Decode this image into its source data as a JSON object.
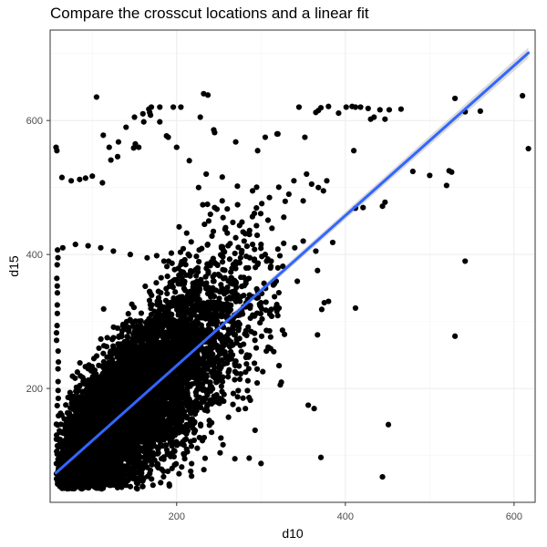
{
  "chart_data": {
    "type": "scatter",
    "title": "Compare the crosscut locations and a linear fit",
    "xlabel": "d10",
    "ylabel": "d15",
    "xlim": [
      50,
      625
    ],
    "ylim": [
      30,
      735
    ],
    "x_ticks": [
      200,
      400,
      600
    ],
    "y_ticks": [
      200,
      400,
      600
    ],
    "grid": true,
    "legend": "none",
    "colors": {
      "points": "#000000",
      "fit_line": "#3366ff",
      "confidence_band": "#c8c8c8",
      "grid": "#ebebeb",
      "border": "#333333"
    },
    "series": [
      {
        "kind": "points",
        "x": [
          57,
          105,
          64,
          58,
          75,
          85,
          92,
          100,
          112,
          120,
          130,
          140,
          150,
          160,
          170,
          180,
          190,
          200,
          215,
          235,
          65,
          80,
          95,
          110,
          125,
          145,
          165,
          185,
          205,
          225,
          245,
          265,
          180,
          196,
          205,
          232,
          237,
          228,
          244,
          245,
          169,
          167,
          161,
          168,
          188,
          113,
          122,
          131,
          149,
          151,
          155,
          270,
          296,
          305,
          319,
          352,
          320,
          272,
          290,
          240,
          238,
          339,
          360,
          374,
          368,
          378,
          354,
          333,
          310,
          385,
          340,
          350,
          365,
          305,
          290,
          312,
          296,
          301,
          285,
          367,
          410,
          412,
          350,
          343,
          320,
          345,
          365,
          368,
          371,
          380,
          392,
          401,
          408,
          412,
          418,
          427,
          430,
          434,
          441,
          447,
          452,
          466,
          480,
          500,
          520,
          530,
          542,
          560,
          610,
          617,
          523,
          526,
          447,
          444,
          530,
          542,
          412,
          421,
          233,
          258,
          260,
          270,
          280,
          300,
          320,
          226,
          254,
          245,
          260,
          255,
          269,
          295,
          318,
          316,
          275,
          287,
          300,
          312,
          246,
          451,
          444,
          371,
          356,
          363,
          286,
          269,
          300,
          367,
          375,
          380,
          372
        ],
        "y": [
          560,
          635,
          515,
          555,
          510,
          512,
          514,
          517,
          507,
          560,
          546,
          590,
          605,
          610,
          620,
          598,
          575,
          560,
          540,
          520,
          410,
          415,
          413,
          410,
          405,
          400,
          395,
          390,
          385,
          380,
          370,
          365,
          620,
          620,
          620,
          640,
          638,
          605,
          586,
          582,
          608,
          617,
          598,
          612,
          577,
          578,
          541,
          568,
          559,
          565,
          560,
          568,
          555,
          575,
          580,
          575,
          580,
          502,
          495,
          460,
          450,
          510,
          505,
          495,
          500,
          510,
          520,
          490,
          485,
          418,
          410,
          420,
          405,
          400,
          415,
          390,
          385,
          397,
          380,
          376,
          555,
          469,
          480,
          360,
          380,
          620,
          612,
          615,
          619,
          621,
          611,
          620,
          621,
          620,
          620,
          618,
          602,
          605,
          616,
          602,
          616,
          617,
          524,
          518,
          503,
          633,
          613,
          614,
          637,
          558,
          525,
          523,
          478,
          472,
          278,
          390,
          320,
          470,
          445,
          440,
          432,
          425,
          420,
          415,
          408,
          500,
          480,
          470,
          468,
          455,
          345,
          335,
          360,
          337,
          330,
          320,
          328,
          318,
          307,
          146,
          68,
          97,
          175,
          170,
          96,
          95,
          88,
          280,
          328,
          330,
          318
        ]
      },
      {
        "kind": "linear-fit",
        "x": [
          57,
          617
        ],
        "y": [
          74,
          701
        ]
      }
    ]
  }
}
